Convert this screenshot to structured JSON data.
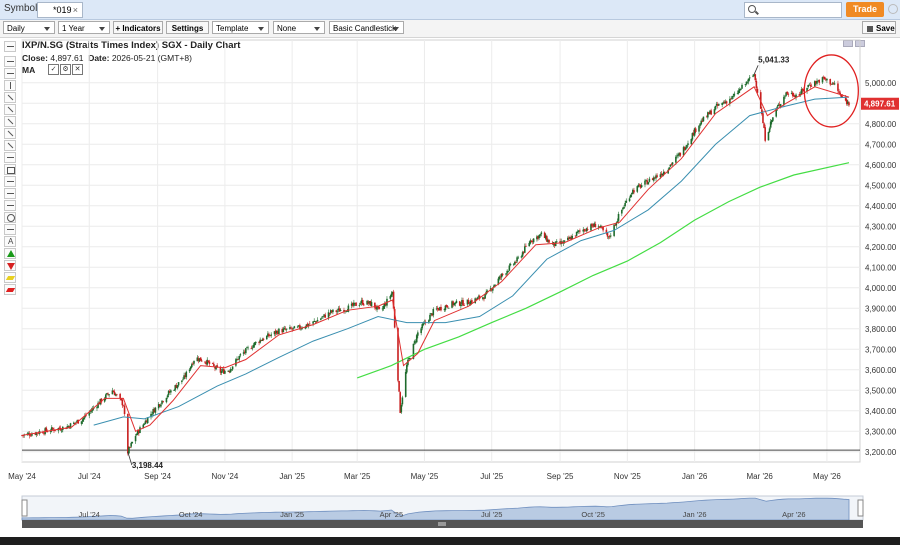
{
  "topbar": {
    "symbols_label": "Symbols:",
    "symbol_value": "*019",
    "symbol_clear": "×",
    "trade_label": "Trade"
  },
  "toolbar": {
    "interval": "Daily",
    "range": "1 Year",
    "indicators_label": "+ Indicators",
    "settings_label": "Settings",
    "template": "Template",
    "overlay": "None",
    "chart_style": "Basic Candlestick",
    "save_label": "Save"
  },
  "header": {
    "title": "IXP/N.SG (Straits Times Index) SGX - Daily Chart",
    "close_label": "Close:",
    "close_value": "4,897.61",
    "date_label": "Date:",
    "date_value": "2026-05-21 (GMT+8)",
    "ma_label": "MA"
  },
  "colors": {
    "up": "#1e6b2c",
    "down": "#c81e1e",
    "ma_fast": "#e03030",
    "ma_mid": "#3a8fb0",
    "ma_slow": "#44dd44",
    "price_badge": "#e03030",
    "annotation": "#e02020"
  },
  "chart_data": {
    "type": "candlestick",
    "xlabel": "",
    "ylabel": "",
    "ylim": [
      3150,
      5150
    ],
    "y_ticks": [
      3200,
      3300,
      3400,
      3500,
      3600,
      3700,
      3800,
      3900,
      4000,
      4100,
      4200,
      4300,
      4400,
      4500,
      4600,
      4700,
      4800,
      4900,
      5000
    ],
    "y_tick_labels": [
      "3,200.00",
      "3,300.00",
      "3,400.00",
      "3,500.00",
      "3,600.00",
      "3,700.00",
      "3,800.00",
      "3,900.00",
      "4,000.00",
      "4,100.00",
      "4,200.00",
      "4,300.00",
      "4,400.00",
      "4,500.00",
      "4,600.00",
      "4,700.00",
      "4,800.00",
      "4,900.00",
      "5,000.00"
    ],
    "x_range": [
      "2024-05-01",
      "2026-05-31"
    ],
    "x_ticks": [
      {
        "date": "2024-05-01",
        "label": "May '24"
      },
      {
        "date": "2024-07-01",
        "label": "Jul '24"
      },
      {
        "date": "2024-09-01",
        "label": "Sep '24"
      },
      {
        "date": "2024-11-01",
        "label": "Nov '24"
      },
      {
        "date": "2025-01-01",
        "label": "Jan '25"
      },
      {
        "date": "2025-03-01",
        "label": "Mar '25"
      },
      {
        "date": "2025-05-01",
        "label": "May '25"
      },
      {
        "date": "2025-07-01",
        "label": "Jul '25"
      },
      {
        "date": "2025-09-01",
        "label": "Sep '25"
      },
      {
        "date": "2025-11-01",
        "label": "Nov '25"
      },
      {
        "date": "2026-01-01",
        "label": "Jan '26"
      },
      {
        "date": "2026-03-01",
        "label": "Mar '26"
      },
      {
        "date": "2026-05-01",
        "label": "May '26"
      }
    ],
    "price_path": [
      [
        "2024-05-01",
        3280
      ],
      [
        "2024-05-20",
        3300
      ],
      [
        "2024-06-10",
        3320
      ],
      [
        "2024-06-25",
        3360
      ],
      [
        "2024-07-10",
        3440
      ],
      [
        "2024-07-22",
        3500
      ],
      [
        "2024-08-01",
        3430
      ],
      [
        "2024-08-05",
        3198
      ],
      [
        "2024-08-12",
        3280
      ],
      [
        "2024-08-25",
        3380
      ],
      [
        "2024-09-10",
        3480
      ],
      [
        "2024-09-25",
        3560
      ],
      [
        "2024-10-05",
        3660
      ],
      [
        "2024-10-15",
        3640
      ],
      [
        "2024-10-28",
        3590
      ],
      [
        "2024-11-05",
        3600
      ],
      [
        "2024-11-15",
        3670
      ],
      [
        "2024-12-01",
        3740
      ],
      [
        "2024-12-20",
        3790
      ],
      [
        "2025-01-05",
        3800
      ],
      [
        "2025-01-20",
        3830
      ],
      [
        "2025-02-05",
        3880
      ],
      [
        "2025-02-20",
        3900
      ],
      [
        "2025-03-05",
        3930
      ],
      [
        "2025-03-15",
        3920
      ],
      [
        "2025-03-22",
        3880
      ],
      [
        "2025-04-02",
        3980
      ],
      [
        "2025-04-07",
        3560
      ],
      [
        "2025-04-09",
        3400
      ],
      [
        "2025-04-15",
        3620
      ],
      [
        "2025-04-25",
        3780
      ],
      [
        "2025-05-10",
        3890
      ],
      [
        "2025-05-25",
        3920
      ],
      [
        "2025-06-10",
        3930
      ],
      [
        "2025-06-25",
        3960
      ],
      [
        "2025-07-10",
        4060
      ],
      [
        "2025-07-25",
        4140
      ],
      [
        "2025-08-05",
        4230
      ],
      [
        "2025-08-15",
        4260
      ],
      [
        "2025-08-25",
        4210
      ],
      [
        "2025-09-05",
        4220
      ],
      [
        "2025-09-20",
        4280
      ],
      [
        "2025-10-05",
        4310
      ],
      [
        "2025-10-15",
        4240
      ],
      [
        "2025-10-25",
        4360
      ],
      [
        "2025-11-05",
        4470
      ],
      [
        "2025-11-20",
        4520
      ],
      [
        "2025-12-05",
        4570
      ],
      [
        "2025-12-20",
        4660
      ],
      [
        "2026-01-05",
        4800
      ],
      [
        "2026-01-20",
        4880
      ],
      [
        "2026-02-05",
        4930
      ],
      [
        "2026-02-24",
        5041
      ],
      [
        "2026-03-02",
        4880
      ],
      [
        "2026-03-06",
        4730
      ],
      [
        "2026-03-15",
        4860
      ],
      [
        "2026-03-25",
        4950
      ],
      [
        "2026-04-05",
        4940
      ],
      [
        "2026-04-15",
        4990
      ],
      [
        "2026-04-28",
        5020
      ],
      [
        "2026-05-08",
        4990
      ],
      [
        "2026-05-14",
        4930
      ],
      [
        "2026-05-21",
        4897
      ]
    ],
    "ma_fast_path": [
      [
        "2024-05-01",
        3280
      ],
      [
        "2024-06-15",
        3320
      ],
      [
        "2024-07-15",
        3460
      ],
      [
        "2024-08-01",
        3460
      ],
      [
        "2024-08-12",
        3300
      ],
      [
        "2024-08-25",
        3330
      ],
      [
        "2024-09-15",
        3450
      ],
      [
        "2024-10-10",
        3620
      ],
      [
        "2024-11-01",
        3610
      ],
      [
        "2024-11-20",
        3650
      ],
      [
        "2024-12-20",
        3770
      ],
      [
        "2025-01-20",
        3820
      ],
      [
        "2025-02-20",
        3890
      ],
      [
        "2025-03-20",
        3910
      ],
      [
        "2025-04-02",
        3940
      ],
      [
        "2025-04-12",
        3620
      ],
      [
        "2025-04-25",
        3680
      ],
      [
        "2025-05-10",
        3840
      ],
      [
        "2025-06-10",
        3910
      ],
      [
        "2025-07-10",
        4030
      ],
      [
        "2025-08-10",
        4210
      ],
      [
        "2025-09-05",
        4220
      ],
      [
        "2025-10-05",
        4290
      ],
      [
        "2025-10-25",
        4320
      ],
      [
        "2025-11-20",
        4480
      ],
      [
        "2025-12-20",
        4630
      ],
      [
        "2026-01-20",
        4850
      ],
      [
        "2026-02-24",
        4980
      ],
      [
        "2026-03-08",
        4840
      ],
      [
        "2026-03-25",
        4900
      ],
      [
        "2026-04-20",
        4980
      ],
      [
        "2026-05-21",
        4930
      ]
    ],
    "ma_mid_path": [
      [
        "2024-07-05",
        3330
      ],
      [
        "2024-08-01",
        3370
      ],
      [
        "2024-08-20",
        3360
      ],
      [
        "2024-09-20",
        3420
      ],
      [
        "2024-10-25",
        3520
      ],
      [
        "2024-11-20",
        3580
      ],
      [
        "2024-12-20",
        3660
      ],
      [
        "2025-01-20",
        3740
      ],
      [
        "2025-02-20",
        3800
      ],
      [
        "2025-03-20",
        3860
      ],
      [
        "2025-04-15",
        3830
      ],
      [
        "2025-05-20",
        3830
      ],
      [
        "2025-06-20",
        3860
      ],
      [
        "2025-07-20",
        3960
      ],
      [
        "2025-08-20",
        4140
      ],
      [
        "2025-09-20",
        4230
      ],
      [
        "2025-10-20",
        4280
      ],
      [
        "2025-11-20",
        4380
      ],
      [
        "2025-12-20",
        4520
      ],
      [
        "2026-01-20",
        4700
      ],
      [
        "2026-02-20",
        4840
      ],
      [
        "2026-03-20",
        4880
      ],
      [
        "2026-04-20",
        4920
      ],
      [
        "2026-05-21",
        4930
      ]
    ],
    "ma_slow_path": [
      [
        "2025-03-01",
        3560
      ],
      [
        "2025-04-01",
        3620
      ],
      [
        "2025-05-01",
        3700
      ],
      [
        "2025-06-01",
        3760
      ],
      [
        "2025-07-01",
        3830
      ],
      [
        "2025-08-01",
        3900
      ],
      [
        "2025-09-01",
        3980
      ],
      [
        "2025-10-01",
        4060
      ],
      [
        "2025-11-01",
        4130
      ],
      [
        "2025-12-01",
        4220
      ],
      [
        "2026-01-01",
        4330
      ],
      [
        "2026-02-01",
        4420
      ],
      [
        "2026-03-01",
        4490
      ],
      [
        "2026-04-01",
        4550
      ],
      [
        "2026-05-21",
        4610
      ]
    ],
    "baseline_value": 3198,
    "annotations": [
      {
        "date": "2026-02-24",
        "value": 5041,
        "label": "5,041.33"
      },
      {
        "date": "2024-08-05",
        "value": 3198,
        "label": "3,198.44"
      }
    ],
    "last_price": {
      "value": 4897.61,
      "label": "4,897.61"
    },
    "highlight_circle": {
      "date": "2026-05-05",
      "value": 4960
    }
  },
  "navigator": {
    "labels": [
      "Jul '24",
      "Oct '24",
      "Jan '25",
      "Apr '25",
      "Jul '25",
      "Oct '25",
      "Jan '26",
      "Apr '26"
    ],
    "label_dates": [
      "2024-07-01",
      "2024-10-01",
      "2025-01-01",
      "2025-04-01",
      "2025-07-01",
      "2025-10-01",
      "2026-01-01",
      "2026-04-01"
    ]
  }
}
